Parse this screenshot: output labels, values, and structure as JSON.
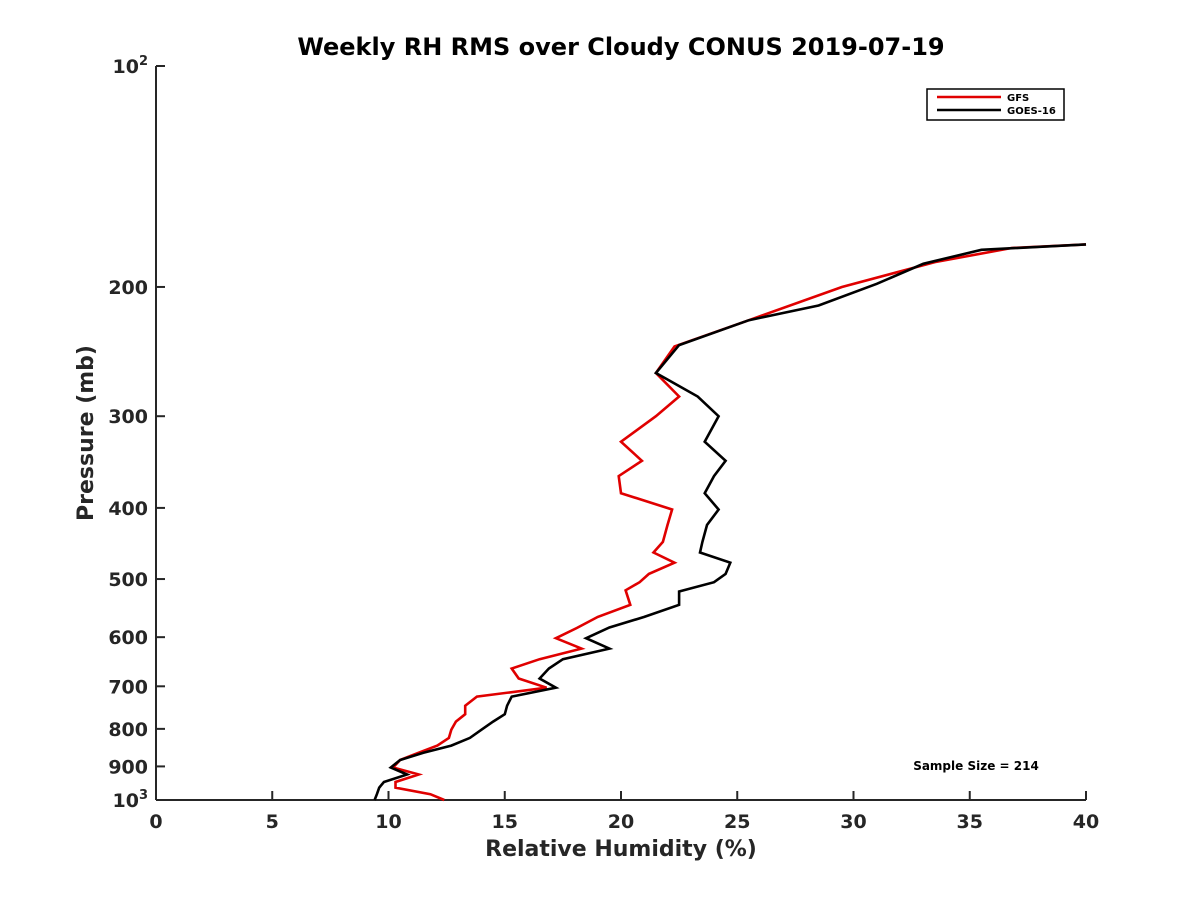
{
  "chart_data": {
    "type": "line",
    "title": "Weekly RH RMS over Cloudy CONUS 2019-07-19",
    "xlabel": "Relative Humidity (%)",
    "ylabel": "Pressure (mb)",
    "xlim": [
      0,
      40
    ],
    "ylim": [
      100,
      1000
    ],
    "yscale": "log",
    "y_reversed": true,
    "x_ticks": [
      "0",
      "5",
      "10",
      "15",
      "20",
      "25",
      "30",
      "35",
      "40"
    ],
    "y_ticks": [
      {
        "value": 100,
        "label": "10",
        "sup": "2"
      },
      {
        "value": 200,
        "label": "200",
        "sup": ""
      },
      {
        "value": 300,
        "label": "300",
        "sup": ""
      },
      {
        "value": 400,
        "label": "400",
        "sup": ""
      },
      {
        "value": 500,
        "label": "500",
        "sup": ""
      },
      {
        "value": 600,
        "label": "600",
        "sup": ""
      },
      {
        "value": 700,
        "label": "700",
        "sup": ""
      },
      {
        "value": 800,
        "label": "800",
        "sup": ""
      },
      {
        "value": 900,
        "label": "900",
        "sup": ""
      },
      {
        "value": 1000,
        "label": "10",
        "sup": "3"
      }
    ],
    "grid": false,
    "legend_position": "top-right",
    "annotation": "Sample Size = 214",
    "series": [
      {
        "name": "GFS",
        "color": "#e00000",
        "points": [
          [
            40.0,
            175
          ],
          [
            36.8,
            177
          ],
          [
            33.5,
            185
          ],
          [
            29.5,
            200
          ],
          [
            25.5,
            222
          ],
          [
            22.3,
            241
          ],
          [
            21.5,
            262
          ],
          [
            22.5,
            282
          ],
          [
            21.5,
            300
          ],
          [
            20.0,
            325
          ],
          [
            20.9,
            345
          ],
          [
            19.9,
            362
          ],
          [
            20.0,
            382
          ],
          [
            22.2,
            402
          ],
          [
            22.0,
            422
          ],
          [
            21.8,
            445
          ],
          [
            21.4,
            460
          ],
          [
            22.3,
            475
          ],
          [
            21.2,
            492
          ],
          [
            20.8,
            505
          ],
          [
            20.2,
            518
          ],
          [
            20.4,
            542
          ],
          [
            19.0,
            563
          ],
          [
            18.1,
            583
          ],
          [
            17.2,
            602
          ],
          [
            18.3,
            622
          ],
          [
            16.5,
            643
          ],
          [
            15.3,
            662
          ],
          [
            15.6,
            683
          ],
          [
            16.8,
            703
          ],
          [
            13.8,
            723
          ],
          [
            13.3,
            744
          ],
          [
            13.3,
            764
          ],
          [
            12.9,
            782
          ],
          [
            12.7,
            802
          ],
          [
            12.6,
            823
          ],
          [
            12.1,
            843
          ],
          [
            11.3,
            862
          ],
          [
            10.5,
            882
          ],
          [
            10.2,
            903
          ],
          [
            11.3,
            923
          ],
          [
            10.3,
            945
          ],
          [
            10.3,
            962
          ],
          [
            11.8,
            982
          ],
          [
            12.4,
            1000
          ]
        ]
      },
      {
        "name": "GOES-16",
        "color": "#000000",
        "points": [
          [
            40.0,
            175
          ],
          [
            35.5,
            178
          ],
          [
            33.0,
            186
          ],
          [
            31.0,
            198
          ],
          [
            28.5,
            212
          ],
          [
            25.5,
            222
          ],
          [
            22.5,
            240
          ],
          [
            21.5,
            262
          ],
          [
            23.3,
            282
          ],
          [
            24.2,
            300
          ],
          [
            23.6,
            325
          ],
          [
            24.5,
            345
          ],
          [
            24.0,
            362
          ],
          [
            23.6,
            382
          ],
          [
            24.2,
            402
          ],
          [
            23.7,
            422
          ],
          [
            23.5,
            445
          ],
          [
            23.4,
            460
          ],
          [
            24.7,
            475
          ],
          [
            24.5,
            492
          ],
          [
            24.0,
            505
          ],
          [
            22.5,
            520
          ],
          [
            22.5,
            542
          ],
          [
            21.0,
            563
          ],
          [
            19.5,
            582
          ],
          [
            18.5,
            602
          ],
          [
            19.5,
            622
          ],
          [
            17.5,
            643
          ],
          [
            16.9,
            662
          ],
          [
            16.5,
            683
          ],
          [
            17.2,
            703
          ],
          [
            15.3,
            723
          ],
          [
            15.1,
            744
          ],
          [
            15.0,
            764
          ],
          [
            14.5,
            782
          ],
          [
            14.0,
            802
          ],
          [
            13.5,
            823
          ],
          [
            12.7,
            843
          ],
          [
            11.5,
            862
          ],
          [
            10.5,
            882
          ],
          [
            10.1,
            903
          ],
          [
            10.8,
            923
          ],
          [
            9.8,
            945
          ],
          [
            9.6,
            962
          ],
          [
            9.5,
            982
          ],
          [
            9.4,
            1000
          ]
        ]
      }
    ]
  }
}
